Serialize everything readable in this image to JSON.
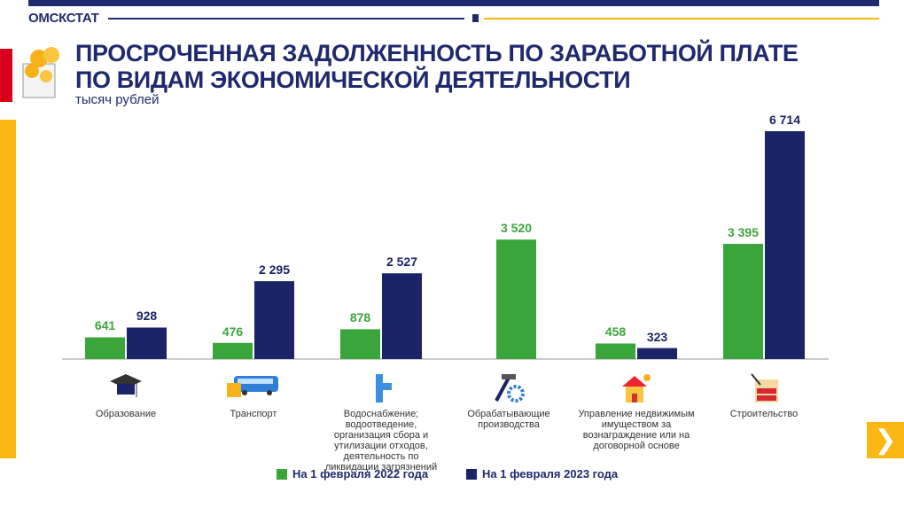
{
  "header": {
    "brand": "ОМСКСТАТ"
  },
  "title_line1": "ПРОСРОЧЕННАЯ ЗАДОЛЖЕННОСТЬ ПО ЗАРАБОТНОЙ ПЛАТЕ",
  "title_line2": "ПО ВИДАМ ЭКОНОМИЧЕСКОЙ ДЕЯТЕЛЬНОСТИ",
  "unit": "тысяч рублей",
  "next_icon": "chevron-right-icon",
  "colors": {
    "s2022": "#3aa53a",
    "s2023": "#1b2466",
    "accent": "#fbb814",
    "brand": "#1f2a6e"
  },
  "chart_data": {
    "type": "bar",
    "title": "ПРОСРОЧЕННАЯ ЗАДОЛЖЕННОСТЬ ПО ЗАРАБОТНОЙ ПЛАТЕ ПО ВИДАМ ЭКОНОМИЧЕСКОЙ ДЕЯТЕЛЬНОСТИ",
    "ylabel": "тысяч рублей",
    "ylim": [
      0,
      6714
    ],
    "grid": false,
    "legend_position": "bottom",
    "categories": [
      "Образование",
      "Транспорт",
      "Водоснабжение; водоотведение, организация сбора и утилизации отходов, деятельность по ликвидации загрязнений",
      "Обрабатывающие производства",
      "Управление недвижимым имуществом за вознаграждение или на договорной основе",
      "Строительство"
    ],
    "category_icons": [
      "graduation-cap-icon",
      "bus-icon",
      "water-pipe-icon",
      "hammer-gear-icon",
      "house-coins-icon",
      "brick-wall-icon"
    ],
    "series": [
      {
        "name": "На 1 февраля 2022 года",
        "values": [
          641,
          476,
          878,
          3520,
          458,
          3395
        ],
        "labels": [
          "641",
          "476",
          "878",
          "3 520",
          "458",
          "3 395"
        ]
      },
      {
        "name": "На 1 февраля 2023 года",
        "values": [
          928,
          2295,
          2527,
          null,
          323,
          6714
        ],
        "labels": [
          "928",
          "2 295",
          "2 527",
          "",
          "323",
          "6 714"
        ]
      }
    ]
  }
}
